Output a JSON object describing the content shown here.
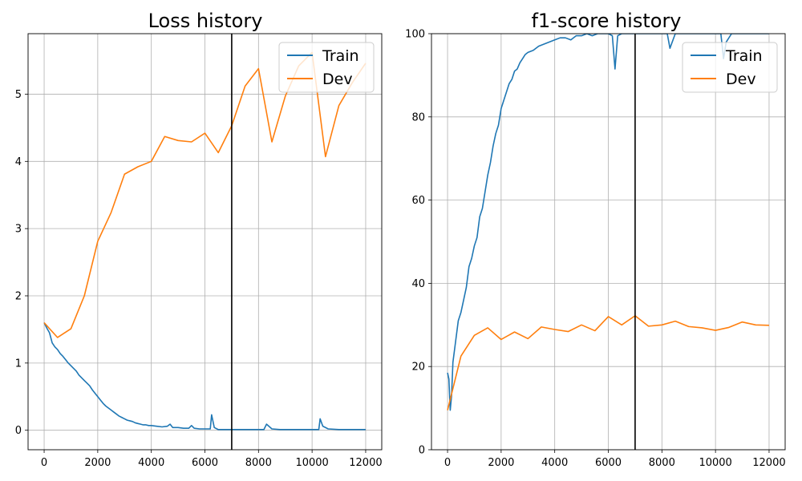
{
  "chart_data": [
    {
      "type": "line",
      "title": "Loss history",
      "xlabel": "",
      "ylabel": "",
      "xlim": [
        -600,
        12600
      ],
      "ylim": [
        -0.29,
        5.9
      ],
      "xticks": [
        0,
        2000,
        4000,
        6000,
        8000,
        10000,
        12000
      ],
      "yticks": [
        0,
        1,
        2,
        3,
        4,
        5
      ],
      "grid": true,
      "legend": "top-right",
      "vline_x": 7000,
      "series": [
        {
          "name": "Train",
          "color": "#1f77b4",
          "x": [
            0,
            100,
            200,
            300,
            400,
            500,
            600,
            700,
            800,
            900,
            1000,
            1100,
            1200,
            1300,
            1400,
            1500,
            1600,
            1700,
            1800,
            1900,
            2000,
            2100,
            2200,
            2300,
            2400,
            2500,
            2600,
            2700,
            2800,
            2900,
            3000,
            3100,
            3200,
            3300,
            3400,
            3500,
            3600,
            3700,
            3800,
            3900,
            4000,
            4200,
            4400,
            4600,
            4700,
            4800,
            5000,
            5200,
            5400,
            5500,
            5600,
            5800,
            6000,
            6200,
            6250,
            6350,
            6500,
            6700,
            7000,
            7500,
            8000,
            8200,
            8300,
            8500,
            8800,
            9000,
            9500,
            10000,
            10250,
            10300,
            10400,
            10600,
            11000,
            11500,
            12000
          ],
          "values": [
            1.6,
            1.52,
            1.45,
            1.3,
            1.24,
            1.2,
            1.14,
            1.1,
            1.05,
            1.0,
            0.96,
            0.92,
            0.88,
            0.82,
            0.78,
            0.74,
            0.7,
            0.66,
            0.6,
            0.55,
            0.5,
            0.45,
            0.4,
            0.36,
            0.33,
            0.3,
            0.27,
            0.24,
            0.21,
            0.19,
            0.17,
            0.15,
            0.14,
            0.13,
            0.11,
            0.1,
            0.09,
            0.08,
            0.08,
            0.07,
            0.07,
            0.06,
            0.05,
            0.06,
            0.09,
            0.04,
            0.04,
            0.03,
            0.03,
            0.07,
            0.03,
            0.02,
            0.02,
            0.02,
            0.23,
            0.04,
            0.01,
            0.01,
            0.01,
            0.01,
            0.01,
            0.01,
            0.09,
            0.02,
            0.01,
            0.01,
            0.01,
            0.01,
            0.01,
            0.17,
            0.06,
            0.02,
            0.01,
            0.01,
            0.01
          ]
        },
        {
          "name": "Dev",
          "color": "#ff7f0e",
          "x": [
            0,
            500,
            1000,
            1500,
            2000,
            2500,
            3000,
            3500,
            4000,
            4500,
            5000,
            5500,
            6000,
            6500,
            7000,
            7500,
            8000,
            8500,
            9000,
            9500,
            10000,
            10500,
            11000,
            11500,
            12000
          ],
          "values": [
            1.6,
            1.38,
            1.51,
            2.0,
            2.81,
            3.24,
            3.81,
            3.92,
            4.0,
            4.37,
            4.31,
            4.29,
            4.42,
            4.13,
            4.53,
            5.12,
            5.38,
            4.29,
            4.97,
            5.42,
            5.62,
            4.07,
            4.83,
            5.17,
            5.46
          ]
        }
      ]
    },
    {
      "type": "line",
      "title": "f1-score history",
      "xlabel": "",
      "ylabel": "",
      "xlim": [
        -600,
        12600
      ],
      "ylim": [
        0,
        100
      ],
      "xticks": [
        0,
        2000,
        4000,
        6000,
        8000,
        10000,
        12000
      ],
      "yticks": [
        0,
        20,
        40,
        60,
        80,
        100
      ],
      "grid": true,
      "legend": "top-right",
      "vline_x": 7000,
      "series": [
        {
          "name": "Train",
          "color": "#1f77b4",
          "x": [
            0,
            50,
            100,
            150,
            200,
            300,
            400,
            500,
            600,
            700,
            800,
            900,
            1000,
            1100,
            1200,
            1300,
            1400,
            1500,
            1600,
            1700,
            1800,
            1900,
            2000,
            2100,
            2200,
            2300,
            2400,
            2500,
            2600,
            2700,
            2800,
            2900,
            3000,
            3200,
            3400,
            3600,
            3800,
            4000,
            4200,
            4400,
            4600,
            4800,
            5000,
            5200,
            5400,
            5600,
            5800,
            6000,
            6150,
            6250,
            6350,
            6500,
            7000,
            7500,
            8000,
            8200,
            8300,
            8500,
            9000,
            9500,
            10000,
            10200,
            10300,
            10400,
            10600,
            11000,
            11500,
            12000
          ],
          "values": [
            18.5,
            17.0,
            9.5,
            13.0,
            21.0,
            26.0,
            31.0,
            33.0,
            36.0,
            39.0,
            44.0,
            46.0,
            49.0,
            51.0,
            56.0,
            58.0,
            62.0,
            66.0,
            69.0,
            73.0,
            76.0,
            78.0,
            82.0,
            84.0,
            86.0,
            88.0,
            89.0,
            91.0,
            91.5,
            93.0,
            94.0,
            95.0,
            95.5,
            96.0,
            97.0,
            97.5,
            98.0,
            98.5,
            99.0,
            99.0,
            98.5,
            99.5,
            99.5,
            100.0,
            99.5,
            100.0,
            100.0,
            100.0,
            99.5,
            91.5,
            99.5,
            100.0,
            100.0,
            100.0,
            100.0,
            100.0,
            96.5,
            100.0,
            100.0,
            100.0,
            100.0,
            100.0,
            94.0,
            98.0,
            100.0,
            100.0,
            100.0,
            100.0
          ]
        },
        {
          "name": "Dev",
          "color": "#ff7f0e",
          "x": [
            0,
            500,
            1000,
            1500,
            2000,
            2500,
            3000,
            3500,
            4000,
            4500,
            5000,
            5500,
            6000,
            6500,
            7000,
            7500,
            8000,
            8500,
            9000,
            9500,
            10000,
            10500,
            11000,
            11500,
            12000
          ],
          "values": [
            9.5,
            22.5,
            27.5,
            29.3,
            26.5,
            28.3,
            26.7,
            29.5,
            28.9,
            28.4,
            30.0,
            28.6,
            32.0,
            30.0,
            32.2,
            29.7,
            30.0,
            30.9,
            29.6,
            29.3,
            28.7,
            29.4,
            30.7,
            30.0,
            29.9
          ]
        }
      ]
    }
  ]
}
